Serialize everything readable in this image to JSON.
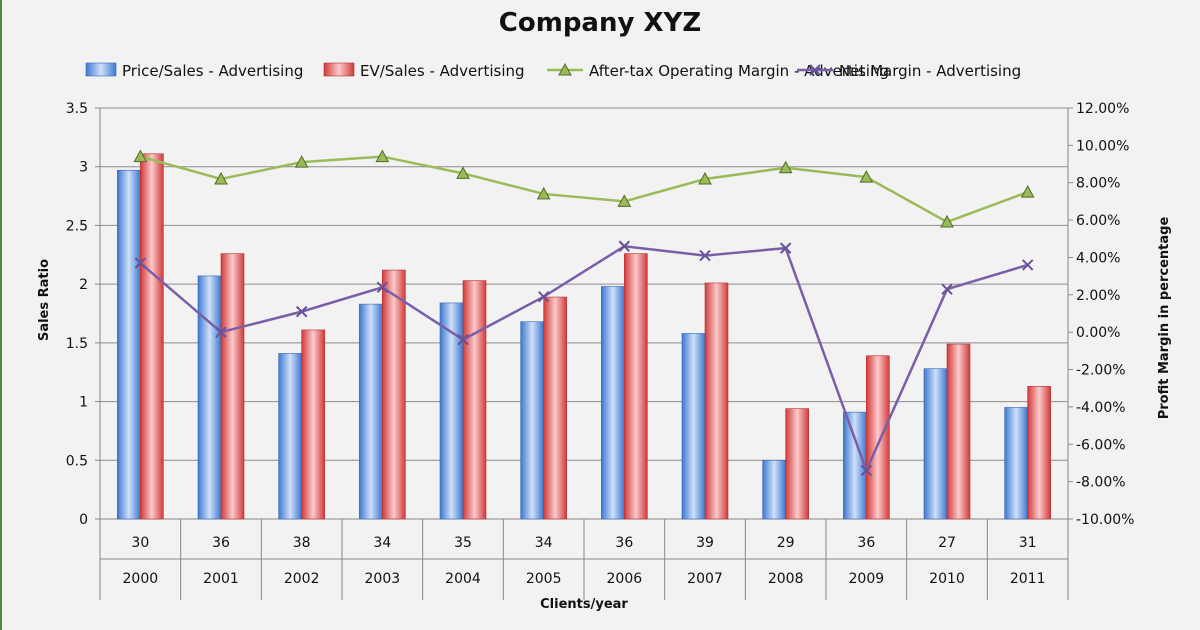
{
  "chart_data": {
    "type": "bar",
    "title": "Company XYZ",
    "categories": [
      "2000",
      "2001",
      "2002",
      "2003",
      "2004",
      "2005",
      "2006",
      "2007",
      "2008",
      "2009",
      "2010",
      "2011"
    ],
    "category_sublabels": [
      "30",
      "36",
      "38",
      "34",
      "35",
      "34",
      "36",
      "39",
      "29",
      "36",
      "27",
      "31"
    ],
    "xlabel": "Clients/year",
    "ylabel": "Sales Ratio",
    "y2label": "Profit Margin in percentage",
    "ylim": [
      0,
      3.5
    ],
    "yticks": [
      "0",
      "0.5",
      "1",
      "1.5",
      "2",
      "2.5",
      "3",
      "3.5"
    ],
    "y2lim": [
      -10,
      12
    ],
    "y2ticks": [
      "-10.00%",
      "-8.00%",
      "-6.00%",
      "-4.00%",
      "-2.00%",
      "0.00%",
      "2.00%",
      "4.00%",
      "6.00%",
      "8.00%",
      "10.00%",
      "12.00%"
    ],
    "grid": true,
    "legend_position": "top",
    "series": [
      {
        "name": "Price/Sales  - Advertising",
        "kind": "bar",
        "axis": "left",
        "color": "#5b8fd9",
        "values": [
          2.97,
          2.07,
          1.41,
          1.83,
          1.84,
          1.68,
          1.98,
          1.58,
          0.5,
          0.91,
          1.28,
          0.95
        ]
      },
      {
        "name": "EV/Sales  - Advertising",
        "kind": "bar",
        "axis": "left",
        "color": "#e05a5a",
        "values": [
          3.11,
          2.26,
          1.61,
          2.12,
          2.03,
          1.89,
          2.26,
          2.01,
          0.94,
          1.39,
          1.49,
          1.13
        ]
      },
      {
        "name": "After-tax Operating Margin  - Advertising",
        "kind": "line",
        "axis": "right",
        "color": "#9bbb59",
        "marker": "triangle",
        "values": [
          9.4,
          8.2,
          9.1,
          9.4,
          8.5,
          7.4,
          7.0,
          8.2,
          8.8,
          8.3,
          5.9,
          7.5
        ]
      },
      {
        "name": "Net Margin  - Advertising",
        "kind": "line",
        "axis": "right",
        "color": "#7a5ea8",
        "marker": "x",
        "values": [
          3.7,
          0.0,
          1.1,
          2.4,
          -0.4,
          1.9,
          4.6,
          4.1,
          4.5,
          -7.4,
          2.3,
          3.6
        ]
      }
    ]
  }
}
